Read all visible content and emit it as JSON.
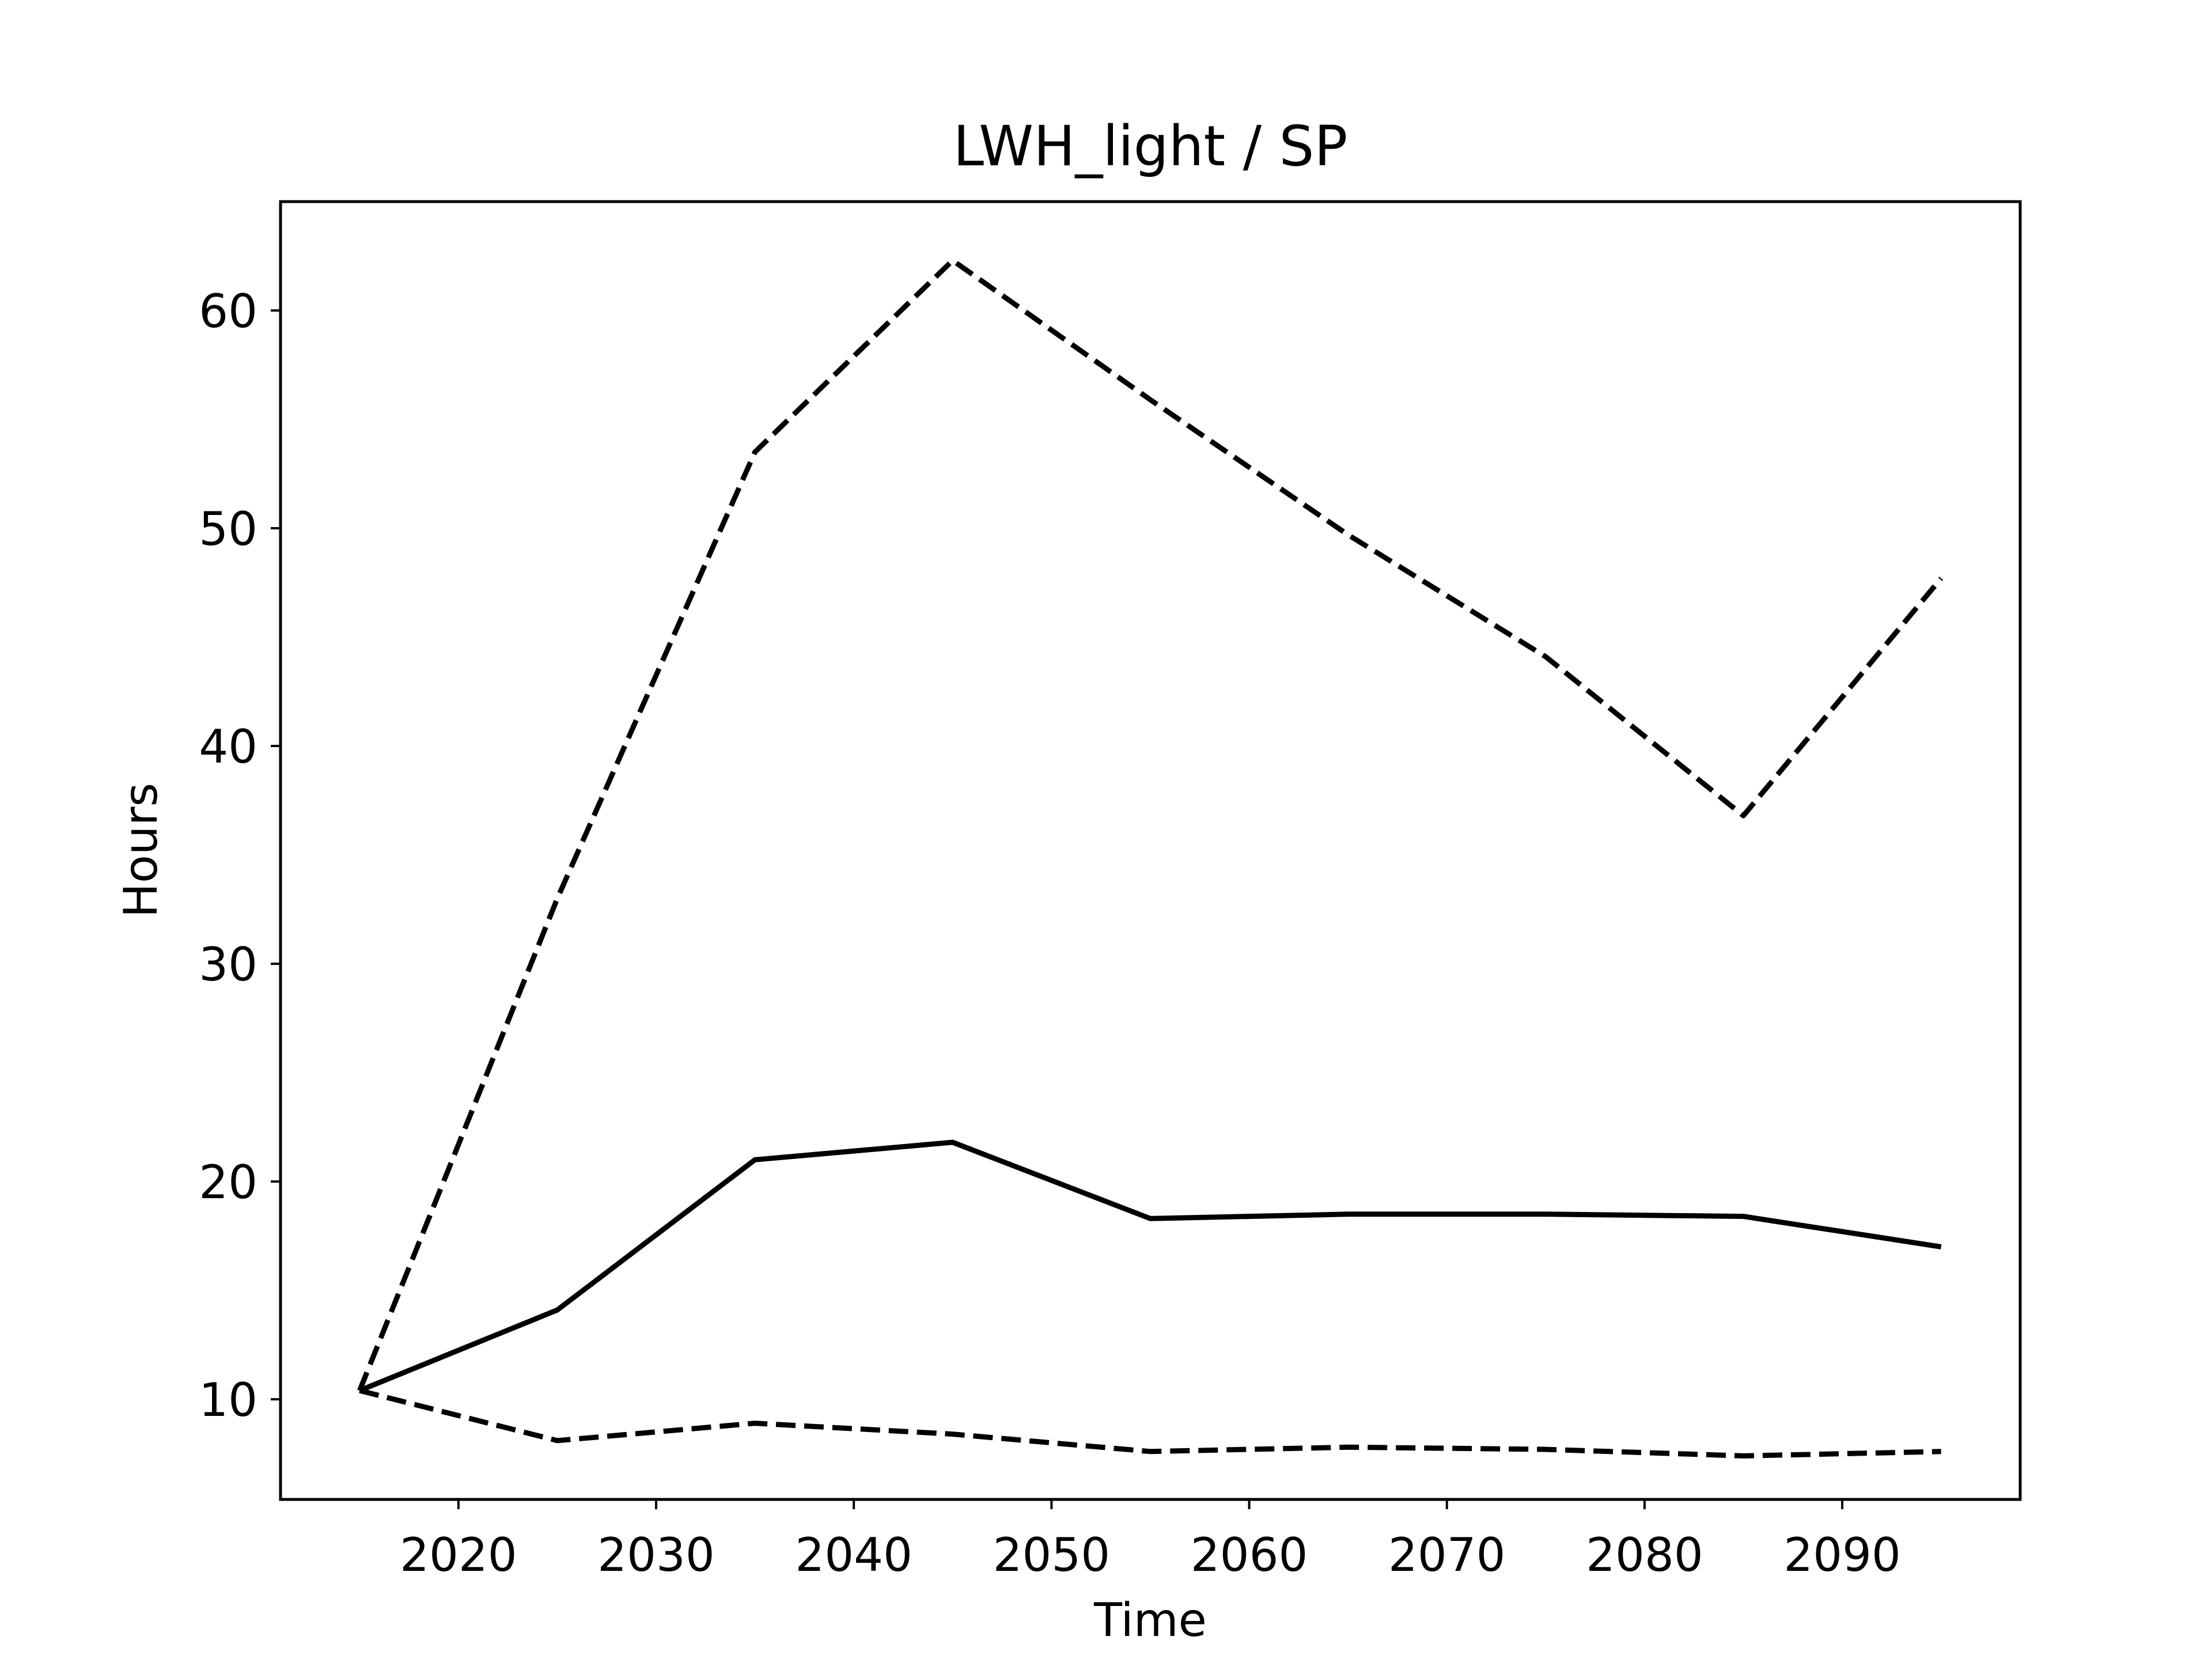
{
  "chart_data": {
    "type": "line",
    "title": "LWH_light / SP",
    "xlabel": "Time",
    "ylabel": "Hours",
    "xlim": [
      2011,
      2099
    ],
    "ylim": [
      5.4,
      65.0
    ],
    "xticks": [
      2020,
      2030,
      2040,
      2050,
      2060,
      2070,
      2080,
      2090
    ],
    "yticks": [
      10,
      20,
      30,
      40,
      50,
      60
    ],
    "grid": false,
    "x": [
      2015,
      2025,
      2035,
      2045,
      2055,
      2065,
      2075,
      2085,
      2095
    ],
    "series": [
      {
        "style": "dashed",
        "color": "#000000",
        "values": [
          10.4,
          33.0,
          53.5,
          62.3,
          55.9,
          49.7,
          44.1,
          36.8,
          47.7
        ]
      },
      {
        "style": "solid",
        "color": "#000000",
        "values": [
          10.4,
          14.1,
          21.0,
          21.8,
          18.3,
          18.5,
          18.5,
          18.4,
          17.0
        ]
      },
      {
        "style": "dashed",
        "color": "#000000",
        "values": [
          10.4,
          8.1,
          8.9,
          8.4,
          7.6,
          7.8,
          7.7,
          7.4,
          7.6
        ]
      }
    ]
  }
}
